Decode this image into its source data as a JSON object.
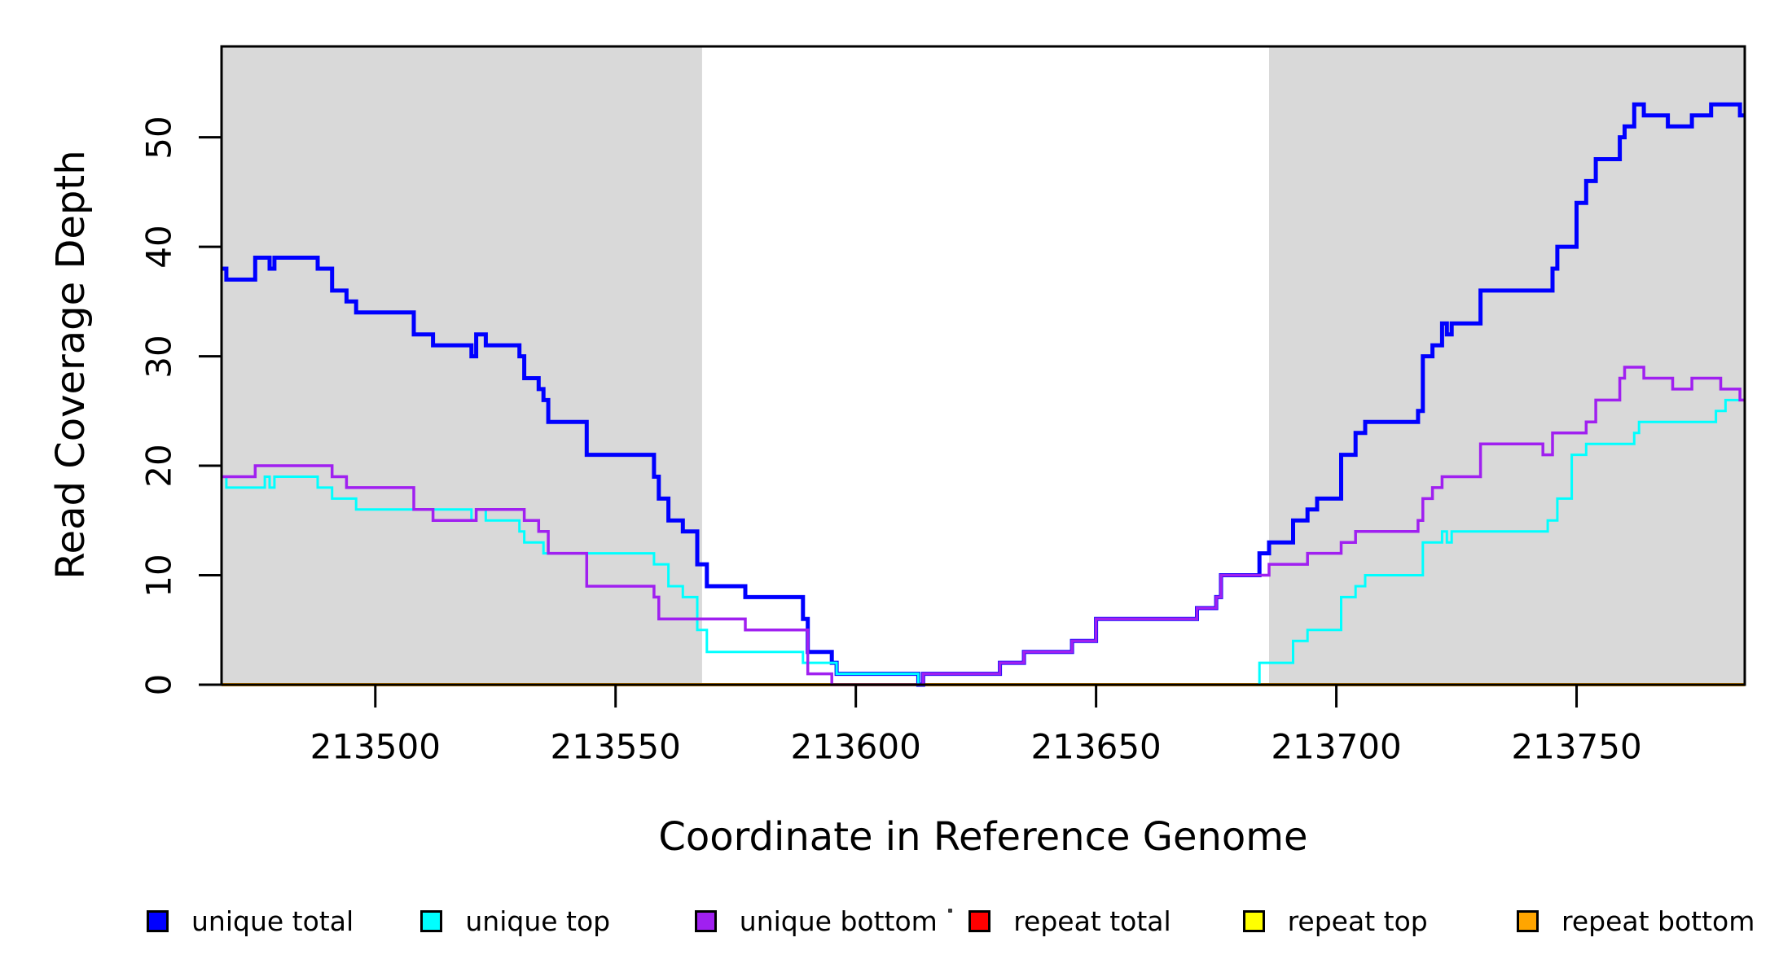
{
  "figure": {
    "x_axis_label": "Coordinate in Reference Genome",
    "y_axis_label": "Read Coverage Depth"
  },
  "legend": [
    {
      "label": "unique total",
      "color": "#0000FF"
    },
    {
      "label": "unique top",
      "color": "#00FFFF"
    },
    {
      "label": "unique bottom",
      "color": "#A020F0"
    },
    {
      "label": "repeat total",
      "color": "#FF0000"
    },
    {
      "label": "repeat top",
      "color": "#FFFF00"
    },
    {
      "label": "repeat bottom",
      "color": "#FFA500"
    }
  ],
  "chart_data": {
    "type": "line",
    "step": true,
    "title": "",
    "xlabel": "Coordinate in Reference Genome",
    "ylabel": "Read Coverage Depth",
    "xlim": [
      213468,
      213785
    ],
    "ylim": [
      0,
      58.3
    ],
    "x_ticks": [
      213500,
      213550,
      213600,
      213650,
      213700,
      213750
    ],
    "y_ticks": [
      0,
      10,
      20,
      30,
      40,
      50
    ],
    "grid": false,
    "legend_position": "bottom",
    "background_color": "#FFFFFF",
    "shaded_region_color": "#D9D9D9",
    "shaded_regions": [
      [
        213468,
        213568
      ],
      [
        213686,
        213785
      ]
    ],
    "draw_order": [
      3,
      4,
      5,
      0,
      1,
      2
    ],
    "series": [
      {
        "name": "unique total",
        "color": "#0000FF",
        "line_width": 5,
        "points": [
          [
            213468,
            38
          ],
          [
            213469,
            37
          ],
          [
            213475,
            39
          ],
          [
            213478,
            38
          ],
          [
            213479,
            39
          ],
          [
            213488,
            38
          ],
          [
            213491,
            36
          ],
          [
            213494,
            35
          ],
          [
            213496,
            34
          ],
          [
            213508,
            32
          ],
          [
            213512,
            31
          ],
          [
            213520,
            30
          ],
          [
            213521,
            32
          ],
          [
            213523,
            31
          ],
          [
            213530,
            30
          ],
          [
            213531,
            28
          ],
          [
            213534,
            27
          ],
          [
            213535,
            26
          ],
          [
            213536,
            24
          ],
          [
            213544,
            21
          ],
          [
            213558,
            19
          ],
          [
            213559,
            17
          ],
          [
            213561,
            15
          ],
          [
            213564,
            14
          ],
          [
            213567,
            11
          ],
          [
            213569,
            9
          ],
          [
            213577,
            8
          ],
          [
            213589,
            6
          ],
          [
            213590,
            3
          ],
          [
            213595,
            2
          ],
          [
            213596,
            1
          ],
          [
            213613,
            0
          ],
          [
            213614,
            1
          ],
          [
            213630,
            2
          ],
          [
            213635,
            3
          ],
          [
            213645,
            4
          ],
          [
            213650,
            6
          ],
          [
            213671,
            7
          ],
          [
            213675,
            8
          ],
          [
            213676,
            10
          ],
          [
            213684,
            12
          ],
          [
            213686,
            13
          ],
          [
            213691,
            15
          ],
          [
            213694,
            16
          ],
          [
            213696,
            17
          ],
          [
            213701,
            21
          ],
          [
            213704,
            23
          ],
          [
            213706,
            24
          ],
          [
            213717,
            25
          ],
          [
            213718,
            30
          ],
          [
            213720,
            31
          ],
          [
            213722,
            33
          ],
          [
            213723,
            32
          ],
          [
            213724,
            33
          ],
          [
            213730,
            36
          ],
          [
            213745,
            38
          ],
          [
            213746,
            40
          ],
          [
            213750,
            44
          ],
          [
            213752,
            46
          ],
          [
            213754,
            48
          ],
          [
            213759,
            50
          ],
          [
            213760,
            51
          ],
          [
            213762,
            53
          ],
          [
            213764,
            52
          ],
          [
            213769,
            51
          ],
          [
            213774,
            52
          ],
          [
            213778,
            53
          ],
          [
            213784,
            52
          ],
          [
            213785,
            52
          ]
        ]
      },
      {
        "name": "unique top",
        "color": "#00FFFF",
        "line_width": 3,
        "points": [
          [
            213468,
            19
          ],
          [
            213469,
            18
          ],
          [
            213477,
            19
          ],
          [
            213478,
            18
          ],
          [
            213479,
            19
          ],
          [
            213488,
            18
          ],
          [
            213491,
            17
          ],
          [
            213496,
            16
          ],
          [
            213520,
            15
          ],
          [
            213521,
            16
          ],
          [
            213523,
            15
          ],
          [
            213530,
            14
          ],
          [
            213531,
            13
          ],
          [
            213535,
            12
          ],
          [
            213558,
            11
          ],
          [
            213561,
            9
          ],
          [
            213564,
            8
          ],
          [
            213567,
            5
          ],
          [
            213569,
            3
          ],
          [
            213589,
            2
          ],
          [
            213596,
            1
          ],
          [
            213613,
            0
          ],
          [
            213684,
            2
          ],
          [
            213691,
            4
          ],
          [
            213694,
            5
          ],
          [
            213701,
            8
          ],
          [
            213704,
            9
          ],
          [
            213706,
            10
          ],
          [
            213718,
            13
          ],
          [
            213722,
            14
          ],
          [
            213723,
            13
          ],
          [
            213724,
            14
          ],
          [
            213744,
            15
          ],
          [
            213746,
            17
          ],
          [
            213749,
            21
          ],
          [
            213752,
            22
          ],
          [
            213762,
            23
          ],
          [
            213763,
            24
          ],
          [
            213779,
            25
          ],
          [
            213781,
            26
          ],
          [
            213785,
            26
          ]
        ]
      },
      {
        "name": "unique bottom",
        "color": "#A020F0",
        "line_width": 3.5,
        "points": [
          [
            213468,
            19
          ],
          [
            213475,
            20
          ],
          [
            213491,
            19
          ],
          [
            213494,
            18
          ],
          [
            213508,
            16
          ],
          [
            213512,
            15
          ],
          [
            213521,
            16
          ],
          [
            213531,
            15
          ],
          [
            213534,
            14
          ],
          [
            213536,
            12
          ],
          [
            213544,
            9
          ],
          [
            213558,
            8
          ],
          [
            213559,
            6
          ],
          [
            213577,
            5
          ],
          [
            213590,
            1
          ],
          [
            213595,
            0
          ],
          [
            213614,
            1
          ],
          [
            213630,
            2
          ],
          [
            213635,
            3
          ],
          [
            213645,
            4
          ],
          [
            213650,
            6
          ],
          [
            213671,
            7
          ],
          [
            213675,
            8
          ],
          [
            213676,
            10
          ],
          [
            213686,
            11
          ],
          [
            213694,
            12
          ],
          [
            213701,
            13
          ],
          [
            213704,
            14
          ],
          [
            213717,
            15
          ],
          [
            213718,
            17
          ],
          [
            213720,
            18
          ],
          [
            213722,
            19
          ],
          [
            213730,
            22
          ],
          [
            213743,
            21
          ],
          [
            213745,
            23
          ],
          [
            213752,
            24
          ],
          [
            213754,
            26
          ],
          [
            213759,
            28
          ],
          [
            213760,
            29
          ],
          [
            213764,
            28
          ],
          [
            213770,
            27
          ],
          [
            213774,
            28
          ],
          [
            213780,
            27
          ],
          [
            213784,
            26
          ],
          [
            213785,
            26
          ]
        ]
      },
      {
        "name": "repeat total",
        "color": "#FF0000",
        "line_width": 3,
        "points": [
          [
            213468,
            0
          ],
          [
            213785,
            0
          ]
        ]
      },
      {
        "name": "repeat top",
        "color": "#FFFF00",
        "line_width": 3,
        "points": [
          [
            213468,
            0
          ],
          [
            213785,
            0
          ]
        ]
      },
      {
        "name": "repeat bottom",
        "color": "#FFA500",
        "line_width": 4,
        "points": [
          [
            213468,
            0
          ],
          [
            213785,
            0
          ]
        ]
      }
    ]
  }
}
